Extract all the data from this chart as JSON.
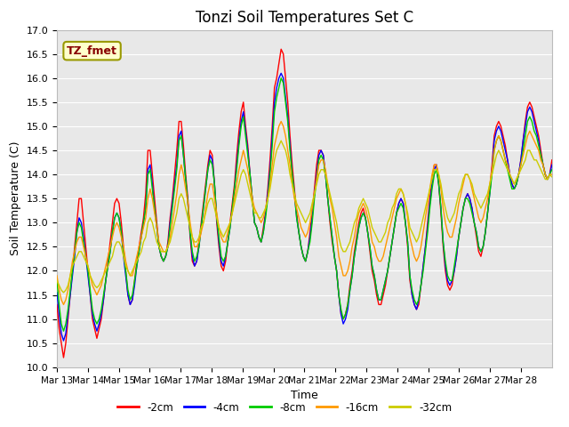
{
  "title": "Tonzi Soil Temperatures Set C",
  "xlabel": "Time",
  "ylabel": "Soil Temperature (C)",
  "ylim": [
    10.0,
    17.0
  ],
  "yticks": [
    10.0,
    10.5,
    11.0,
    11.5,
    12.0,
    12.5,
    13.0,
    13.5,
    14.0,
    14.5,
    15.0,
    15.5,
    16.0,
    16.5,
    17.0
  ],
  "xtick_labels": [
    "Mar 13",
    "Mar 14",
    "Mar 15",
    "Mar 16",
    "Mar 17",
    "Mar 18",
    "Mar 19",
    "Mar 20",
    "Mar 21",
    "Mar 22",
    "Mar 23",
    "Mar 24",
    "Mar 25",
    "Mar 26",
    "Mar 27",
    "Mar 28"
  ],
  "series_colors": [
    "#ff0000",
    "#0000ff",
    "#00cc00",
    "#ff9900",
    "#cccc00"
  ],
  "series_labels": [
    "-2cm",
    "-4cm",
    "-8cm",
    "-16cm",
    "-32cm"
  ],
  "legend_label": "TZ_fmet",
  "legend_box_facecolor": "#ffffcc",
  "legend_box_edgecolor": "#999900",
  "legend_text_color": "#880000",
  "fig_facecolor": "#ffffff",
  "plot_facecolor": "#e8e8e8",
  "grid_color": "#ffffff",
  "n_days": 16,
  "title_fontsize": 12,
  "axis_label_fontsize": 9,
  "tick_fontsize": 8,
  "series": {
    "m2cm": [
      11.3,
      10.8,
      10.5,
      10.2,
      10.5,
      11.0,
      11.5,
      12.0,
      12.5,
      13.0,
      13.5,
      13.5,
      13.0,
      12.5,
      12.0,
      11.5,
      11.0,
      10.8,
      10.6,
      10.8,
      11.0,
      11.4,
      11.8,
      12.2,
      12.6,
      13.0,
      13.4,
      13.5,
      13.4,
      13.0,
      12.5,
      12.0,
      11.5,
      11.3,
      11.4,
      11.8,
      12.2,
      12.5,
      12.8,
      13.1,
      13.6,
      14.5,
      14.5,
      14.0,
      13.5,
      13.0,
      12.5,
      12.3,
      12.2,
      12.3,
      12.6,
      13.1,
      13.5,
      14.0,
      14.5,
      15.1,
      15.1,
      14.6,
      14.0,
      13.5,
      12.7,
      12.2,
      12.1,
      12.2,
      12.6,
      13.0,
      13.4,
      13.8,
      14.2,
      14.5,
      14.4,
      13.8,
      13.0,
      12.5,
      12.1,
      12.0,
      12.2,
      12.6,
      13.0,
      13.4,
      13.8,
      14.4,
      14.9,
      15.3,
      15.5,
      15.0,
      14.6,
      14.0,
      13.5,
      13.0,
      12.9,
      12.7,
      12.6,
      12.9,
      13.2,
      13.7,
      14.3,
      15.0,
      15.8,
      16.0,
      16.3,
      16.6,
      16.5,
      16.0,
      15.5,
      14.8,
      14.2,
      13.7,
      13.2,
      12.8,
      12.5,
      12.3,
      12.2,
      12.4,
      12.8,
      13.2,
      13.7,
      14.2,
      14.5,
      14.5,
      14.4,
      14.0,
      13.5,
      13.0,
      12.6,
      12.3,
      12.0,
      11.5,
      11.1,
      11.0,
      11.1,
      11.3,
      11.7,
      12.0,
      12.4,
      12.7,
      13.0,
      13.2,
      13.3,
      13.1,
      12.8,
      12.4,
      12.0,
      11.8,
      11.5,
      11.3,
      11.3,
      11.5,
      11.7,
      12.0,
      12.3,
      12.6,
      12.9,
      13.2,
      13.4,
      13.5,
      13.4,
      13.0,
      12.5,
      11.8,
      11.5,
      11.3,
      11.2,
      11.3,
      11.7,
      12.1,
      12.5,
      13.0,
      13.5,
      13.9,
      14.2,
      14.2,
      13.8,
      13.2,
      12.5,
      12.0,
      11.7,
      11.6,
      11.7,
      12.0,
      12.3,
      12.7,
      13.0,
      13.3,
      13.5,
      13.6,
      13.5,
      13.3,
      13.0,
      12.7,
      12.4,
      12.3,
      12.5,
      12.8,
      13.2,
      13.7,
      14.2,
      14.8,
      15.0,
      15.1,
      15.0,
      14.8,
      14.6,
      14.3,
      14.0,
      13.8,
      13.7,
      13.8,
      14.0,
      14.3,
      14.7,
      15.1,
      15.4,
      15.5,
      15.4,
      15.2,
      15.0,
      14.8,
      14.5,
      14.2,
      14.0,
      13.9,
      14.0,
      14.3
    ],
    "m4cm": [
      11.55,
      11.1,
      10.7,
      10.55,
      10.7,
      11.1,
      11.5,
      11.9,
      12.3,
      12.8,
      13.1,
      13.0,
      12.7,
      12.3,
      11.9,
      11.5,
      11.1,
      10.9,
      10.75,
      10.9,
      11.1,
      11.4,
      11.8,
      12.1,
      12.4,
      12.8,
      13.1,
      13.2,
      13.1,
      12.8,
      12.3,
      11.9,
      11.5,
      11.3,
      11.4,
      11.7,
      12.1,
      12.4,
      12.7,
      13.0,
      13.3,
      14.1,
      14.2,
      13.8,
      13.3,
      12.9,
      12.5,
      12.3,
      12.2,
      12.3,
      12.5,
      13.0,
      13.4,
      13.8,
      14.2,
      14.8,
      14.9,
      14.4,
      13.9,
      13.4,
      12.8,
      12.3,
      12.1,
      12.2,
      12.5,
      12.9,
      13.3,
      13.7,
      14.1,
      14.4,
      14.3,
      13.8,
      13.1,
      12.6,
      12.2,
      12.1,
      12.3,
      12.6,
      12.9,
      13.3,
      13.7,
      14.2,
      14.7,
      15.1,
      15.3,
      14.9,
      14.5,
      14.0,
      13.5,
      13.0,
      12.9,
      12.7,
      12.6,
      12.8,
      13.2,
      13.6,
      14.1,
      14.8,
      15.5,
      15.8,
      16.0,
      16.1,
      16.0,
      15.6,
      15.2,
      14.6,
      14.0,
      13.6,
      13.1,
      12.8,
      12.5,
      12.3,
      12.2,
      12.4,
      12.7,
      13.1,
      13.6,
      14.0,
      14.4,
      14.5,
      14.4,
      14.0,
      13.5,
      13.1,
      12.7,
      12.3,
      12.0,
      11.5,
      11.1,
      10.9,
      11.0,
      11.2,
      11.6,
      11.9,
      12.3,
      12.6,
      12.9,
      13.1,
      13.2,
      13.1,
      12.8,
      12.5,
      12.1,
      11.9,
      11.6,
      11.4,
      11.4,
      11.6,
      11.8,
      12.0,
      12.3,
      12.6,
      12.9,
      13.2,
      13.4,
      13.5,
      13.4,
      13.0,
      12.6,
      11.9,
      11.5,
      11.3,
      11.2,
      11.4,
      11.7,
      12.1,
      12.5,
      12.9,
      13.4,
      13.8,
      14.1,
      14.2,
      13.8,
      13.3,
      12.6,
      12.1,
      11.8,
      11.7,
      11.8,
      12.0,
      12.3,
      12.7,
      13.0,
      13.3,
      13.5,
      13.6,
      13.5,
      13.3,
      13.0,
      12.8,
      12.5,
      12.4,
      12.5,
      12.8,
      13.2,
      13.6,
      14.1,
      14.7,
      14.9,
      15.0,
      14.9,
      14.7,
      14.5,
      14.3,
      14.0,
      13.8,
      13.7,
      13.8,
      14.0,
      14.3,
      14.7,
      15.0,
      15.3,
      15.4,
      15.3,
      15.1,
      14.9,
      14.7,
      14.4,
      14.2,
      14.0,
      13.9,
      14.0,
      14.2
    ],
    "m8cm": [
      11.8,
      11.3,
      10.9,
      10.75,
      10.9,
      11.2,
      11.6,
      12.0,
      12.4,
      12.8,
      13.0,
      12.9,
      12.6,
      12.3,
      12.0,
      11.6,
      11.2,
      11.0,
      10.9,
      11.0,
      11.2,
      11.5,
      11.8,
      12.1,
      12.4,
      12.8,
      13.1,
      13.2,
      13.1,
      12.8,
      12.4,
      12.0,
      11.6,
      11.4,
      11.5,
      11.8,
      12.1,
      12.4,
      12.7,
      13.0,
      13.3,
      14.0,
      14.1,
      13.7,
      13.3,
      12.9,
      12.5,
      12.3,
      12.2,
      12.3,
      12.5,
      12.9,
      13.3,
      13.7,
      14.1,
      14.7,
      14.8,
      14.4,
      13.9,
      13.4,
      12.8,
      12.4,
      12.2,
      12.3,
      12.5,
      12.9,
      13.3,
      13.7,
      14.1,
      14.3,
      14.2,
      13.8,
      13.1,
      12.7,
      12.3,
      12.2,
      12.3,
      12.6,
      12.9,
      13.3,
      13.7,
      14.1,
      14.6,
      15.0,
      15.2,
      14.8,
      14.4,
      14.0,
      13.5,
      13.0,
      12.9,
      12.7,
      12.6,
      12.8,
      13.1,
      13.5,
      14.0,
      14.6,
      15.3,
      15.6,
      15.8,
      16.0,
      15.9,
      15.5,
      15.1,
      14.5,
      14.0,
      13.6,
      13.1,
      12.8,
      12.5,
      12.3,
      12.2,
      12.4,
      12.6,
      13.0,
      13.5,
      13.9,
      14.3,
      14.4,
      14.3,
      14.0,
      13.5,
      13.1,
      12.7,
      12.3,
      12.0,
      11.5,
      11.2,
      11.0,
      11.1,
      11.3,
      11.6,
      11.9,
      12.3,
      12.6,
      12.9,
      13.1,
      13.2,
      13.1,
      12.8,
      12.5,
      12.1,
      11.9,
      11.6,
      11.4,
      11.4,
      11.6,
      11.8,
      12.0,
      12.3,
      12.6,
      12.9,
      13.2,
      13.3,
      13.4,
      13.3,
      13.0,
      12.6,
      11.9,
      11.6,
      11.4,
      11.3,
      11.4,
      11.7,
      12.0,
      12.4,
      12.8,
      13.3,
      13.7,
      14.0,
      14.1,
      13.8,
      13.3,
      12.6,
      12.2,
      11.9,
      11.8,
      11.8,
      12.1,
      12.4,
      12.7,
      13.0,
      13.3,
      13.5,
      13.5,
      13.4,
      13.2,
      13.0,
      12.8,
      12.5,
      12.4,
      12.5,
      12.8,
      13.2,
      13.6,
      14.0,
      14.5,
      14.7,
      14.8,
      14.7,
      14.5,
      14.3,
      14.1,
      13.9,
      13.7,
      13.7,
      13.8,
      14.0,
      14.2,
      14.5,
      14.8,
      15.1,
      15.2,
      15.1,
      14.9,
      14.8,
      14.6,
      14.4,
      14.2,
      14.0,
      13.9,
      14.0,
      14.1
    ],
    "m16cm": [
      11.9,
      11.6,
      11.4,
      11.3,
      11.4,
      11.6,
      11.9,
      12.2,
      12.4,
      12.6,
      12.7,
      12.7,
      12.5,
      12.3,
      12.1,
      11.9,
      11.7,
      11.6,
      11.5,
      11.6,
      11.7,
      11.9,
      12.1,
      12.3,
      12.5,
      12.7,
      12.9,
      13.0,
      12.9,
      12.7,
      12.5,
      12.2,
      12.0,
      11.9,
      11.9,
      12.1,
      12.3,
      12.5,
      12.7,
      12.9,
      13.1,
      13.5,
      13.7,
      13.5,
      13.2,
      12.9,
      12.6,
      12.5,
      12.4,
      12.4,
      12.5,
      12.7,
      13.0,
      13.3,
      13.6,
      14.0,
      14.2,
      14.0,
      13.7,
      13.4,
      13.0,
      12.7,
      12.5,
      12.5,
      12.6,
      12.8,
      13.0,
      13.3,
      13.6,
      13.8,
      13.8,
      13.5,
      13.2,
      12.9,
      12.7,
      12.6,
      12.6,
      12.8,
      13.0,
      13.2,
      13.5,
      13.8,
      14.1,
      14.3,
      14.5,
      14.3,
      14.1,
      13.8,
      13.5,
      13.3,
      13.2,
      13.1,
      13.0,
      13.1,
      13.3,
      13.5,
      13.8,
      14.2,
      14.6,
      14.8,
      15.0,
      15.1,
      15.0,
      14.8,
      14.5,
      14.2,
      13.8,
      13.5,
      13.3,
      13.1,
      12.9,
      12.8,
      12.7,
      12.8,
      13.0,
      13.3,
      13.6,
      13.9,
      14.2,
      14.3,
      14.3,
      14.1,
      13.8,
      13.5,
      13.3,
      13.0,
      12.7,
      12.3,
      12.1,
      11.9,
      11.9,
      12.0,
      12.2,
      12.5,
      12.7,
      13.0,
      13.2,
      13.3,
      13.4,
      13.3,
      13.1,
      12.9,
      12.6,
      12.5,
      12.3,
      12.2,
      12.2,
      12.3,
      12.5,
      12.7,
      12.9,
      13.1,
      13.3,
      13.5,
      13.6,
      13.7,
      13.6,
      13.4,
      13.1,
      12.7,
      12.5,
      12.3,
      12.2,
      12.3,
      12.5,
      12.8,
      13.1,
      13.4,
      13.7,
      14.0,
      14.2,
      14.2,
      14.0,
      13.7,
      13.3,
      13.0,
      12.8,
      12.7,
      12.7,
      12.9,
      13.1,
      13.4,
      13.6,
      13.8,
      14.0,
      14.0,
      13.9,
      13.7,
      13.5,
      13.3,
      13.1,
      13.0,
      13.1,
      13.3,
      13.5,
      13.8,
      14.1,
      14.5,
      14.7,
      14.8,
      14.7,
      14.5,
      14.3,
      14.2,
      14.0,
      13.9,
      13.8,
      13.9,
      14.0,
      14.2,
      14.4,
      14.6,
      14.8,
      14.9,
      14.8,
      14.7,
      14.6,
      14.5,
      14.3,
      14.2,
      14.0,
      13.9,
      14.0,
      14.0
    ],
    "m32cm": [
      11.8,
      11.7,
      11.6,
      11.55,
      11.6,
      11.7,
      11.9,
      12.1,
      12.2,
      12.3,
      12.4,
      12.4,
      12.3,
      12.2,
      12.1,
      11.9,
      11.8,
      11.7,
      11.65,
      11.7,
      11.8,
      11.9,
      12.0,
      12.1,
      12.2,
      12.3,
      12.5,
      12.6,
      12.6,
      12.5,
      12.3,
      12.1,
      12.0,
      11.9,
      12.0,
      12.1,
      12.2,
      12.3,
      12.4,
      12.6,
      12.7,
      13.0,
      13.1,
      13.0,
      12.8,
      12.6,
      12.5,
      12.4,
      12.4,
      12.4,
      12.5,
      12.6,
      12.8,
      13.0,
      13.2,
      13.5,
      13.6,
      13.5,
      13.3,
      13.1,
      12.9,
      12.7,
      12.6,
      12.6,
      12.7,
      12.9,
      13.0,
      13.2,
      13.4,
      13.5,
      13.5,
      13.3,
      13.1,
      12.9,
      12.8,
      12.7,
      12.8,
      12.9,
      13.0,
      13.2,
      13.4,
      13.6,
      13.8,
      14.0,
      14.1,
      14.0,
      13.8,
      13.6,
      13.4,
      13.2,
      13.2,
      13.1,
      13.1,
      13.2,
      13.3,
      13.5,
      13.7,
      14.0,
      14.3,
      14.5,
      14.6,
      14.7,
      14.6,
      14.5,
      14.3,
      14.0,
      13.8,
      13.6,
      13.4,
      13.3,
      13.2,
      13.1,
      13.0,
      13.1,
      13.2,
      13.4,
      13.6,
      13.8,
      14.0,
      14.1,
      14.1,
      14.0,
      13.8,
      13.6,
      13.4,
      13.2,
      13.0,
      12.7,
      12.5,
      12.4,
      12.4,
      12.5,
      12.6,
      12.8,
      13.0,
      13.1,
      13.3,
      13.4,
      13.5,
      13.4,
      13.3,
      13.1,
      12.9,
      12.8,
      12.7,
      12.6,
      12.6,
      12.7,
      12.8,
      13.0,
      13.1,
      13.3,
      13.4,
      13.6,
      13.7,
      13.7,
      13.6,
      13.4,
      13.2,
      12.9,
      12.8,
      12.7,
      12.6,
      12.7,
      12.9,
      13.1,
      13.3,
      13.5,
      13.7,
      13.9,
      14.1,
      14.1,
      14.0,
      13.8,
      13.5,
      13.3,
      13.1,
      13.0,
      13.1,
      13.2,
      13.4,
      13.6,
      13.7,
      13.9,
      14.0,
      14.0,
      13.9,
      13.8,
      13.6,
      13.5,
      13.4,
      13.3,
      13.4,
      13.5,
      13.6,
      13.8,
      14.0,
      14.2,
      14.4,
      14.5,
      14.4,
      14.3,
      14.2,
      14.1,
      14.0,
      13.9,
      13.8,
      13.9,
      14.0,
      14.1,
      14.2,
      14.3,
      14.5,
      14.5,
      14.4,
      14.3,
      14.3,
      14.2,
      14.1,
      14.0,
      13.9,
      13.9,
      14.0,
      13.95
    ]
  }
}
